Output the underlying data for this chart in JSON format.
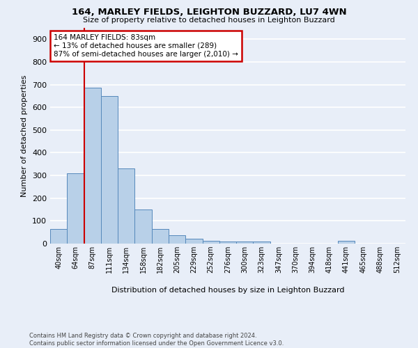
{
  "title": "164, MARLEY FIELDS, LEIGHTON BUZZARD, LU7 4WN",
  "subtitle": "Size of property relative to detached houses in Leighton Buzzard",
  "xlabel": "Distribution of detached houses by size in Leighton Buzzard",
  "ylabel": "Number of detached properties",
  "bar_labels": [
    "40sqm",
    "64sqm",
    "87sqm",
    "111sqm",
    "134sqm",
    "158sqm",
    "182sqm",
    "205sqm",
    "229sqm",
    "252sqm",
    "276sqm",
    "300sqm",
    "323sqm",
    "347sqm",
    "370sqm",
    "394sqm",
    "418sqm",
    "441sqm",
    "465sqm",
    "488sqm",
    "512sqm"
  ],
  "bar_values": [
    65,
    310,
    685,
    650,
    330,
    150,
    65,
    37,
    22,
    12,
    10,
    10,
    10,
    0,
    0,
    0,
    0,
    12,
    0,
    0,
    0
  ],
  "bar_color": "#b8d0e8",
  "bar_edge_color": "#5588bb",
  "annotation_text": "164 MARLEY FIELDS: 83sqm\n← 13% of detached houses are smaller (289)\n87% of semi-detached houses are larger (2,010) →",
  "annotation_box_color": "#ffffff",
  "annotation_border_color": "#cc0000",
  "vline_color": "#cc0000",
  "vline_x_index": 1.5,
  "footer": "Contains HM Land Registry data © Crown copyright and database right 2024.\nContains public sector information licensed under the Open Government Licence v3.0.",
  "ylim": [
    0,
    950
  ],
  "yticks": [
    0,
    100,
    200,
    300,
    400,
    500,
    600,
    700,
    800,
    900
  ],
  "background_color": "#e8eef8",
  "grid_color": "#ffffff"
}
